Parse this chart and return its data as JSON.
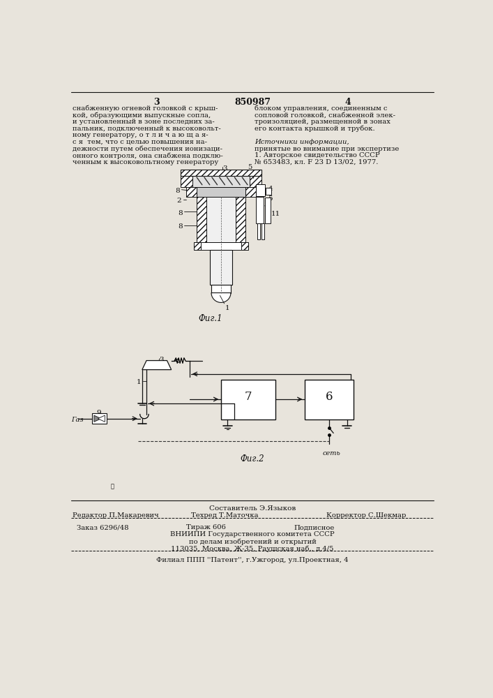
{
  "bg_color": "#e8e4dc",
  "page_number_left": "3",
  "page_number_center": "850987",
  "page_number_right": "4",
  "col_left_lines": [
    "снабженную огневой головкой с крыш-",
    "кой, образующими выпускные сопла,",
    "и установленный в зоне последних за-",
    "пальник, подключенный к высоковольт-",
    "ному генератору, о т л и ч а ю щ а я-",
    "с я  тем, что с целью повышения на-",
    "дежности путем обеспечения ионизаци-",
    "онного контроля, она снабжена подклю-",
    "ченным к высоковольтному генератору"
  ],
  "col_right_lines": [
    "блоком управления, соединенным с",
    "сопловой головкой, снабженной элек-",
    "троизоляцией, размещенной в зонах",
    "его контакта крышкой и трубок.",
    "",
    "Источники информации,",
    "принятые во внимание при экспертизе",
    "1. Авторское свидетельство СССР",
    "№ 653483, кл. F 23 D 13/02, 1977."
  ],
  "fig1_caption": "Фиг.1",
  "fig2_caption": "Фиг.2",
  "ref_5": "5",
  "bottom_author": "Составитель Э.Языков",
  "bottom_editor": "Редактор П.Макаревич",
  "bottom_tech": "Техред Т.Маточка",
  "bottom_corr": "Корректор С.Шекмар",
  "bottom_order": "Заказ 6296/48",
  "bottom_tirazh": "Тираж 606",
  "bottom_podp": "Подписное",
  "bottom_vniip1": "ВНИИПИ Государственного комитета СССР",
  "bottom_vniip2": "по делам изобретений и открытий",
  "bottom_vniip3": "113035, Москва, Ж-35, Раушская наб., д.4/5",
  "bottom_filial": "Филиал ППП ''Патент'', г.Ужгород, ул.Проектная, 4"
}
